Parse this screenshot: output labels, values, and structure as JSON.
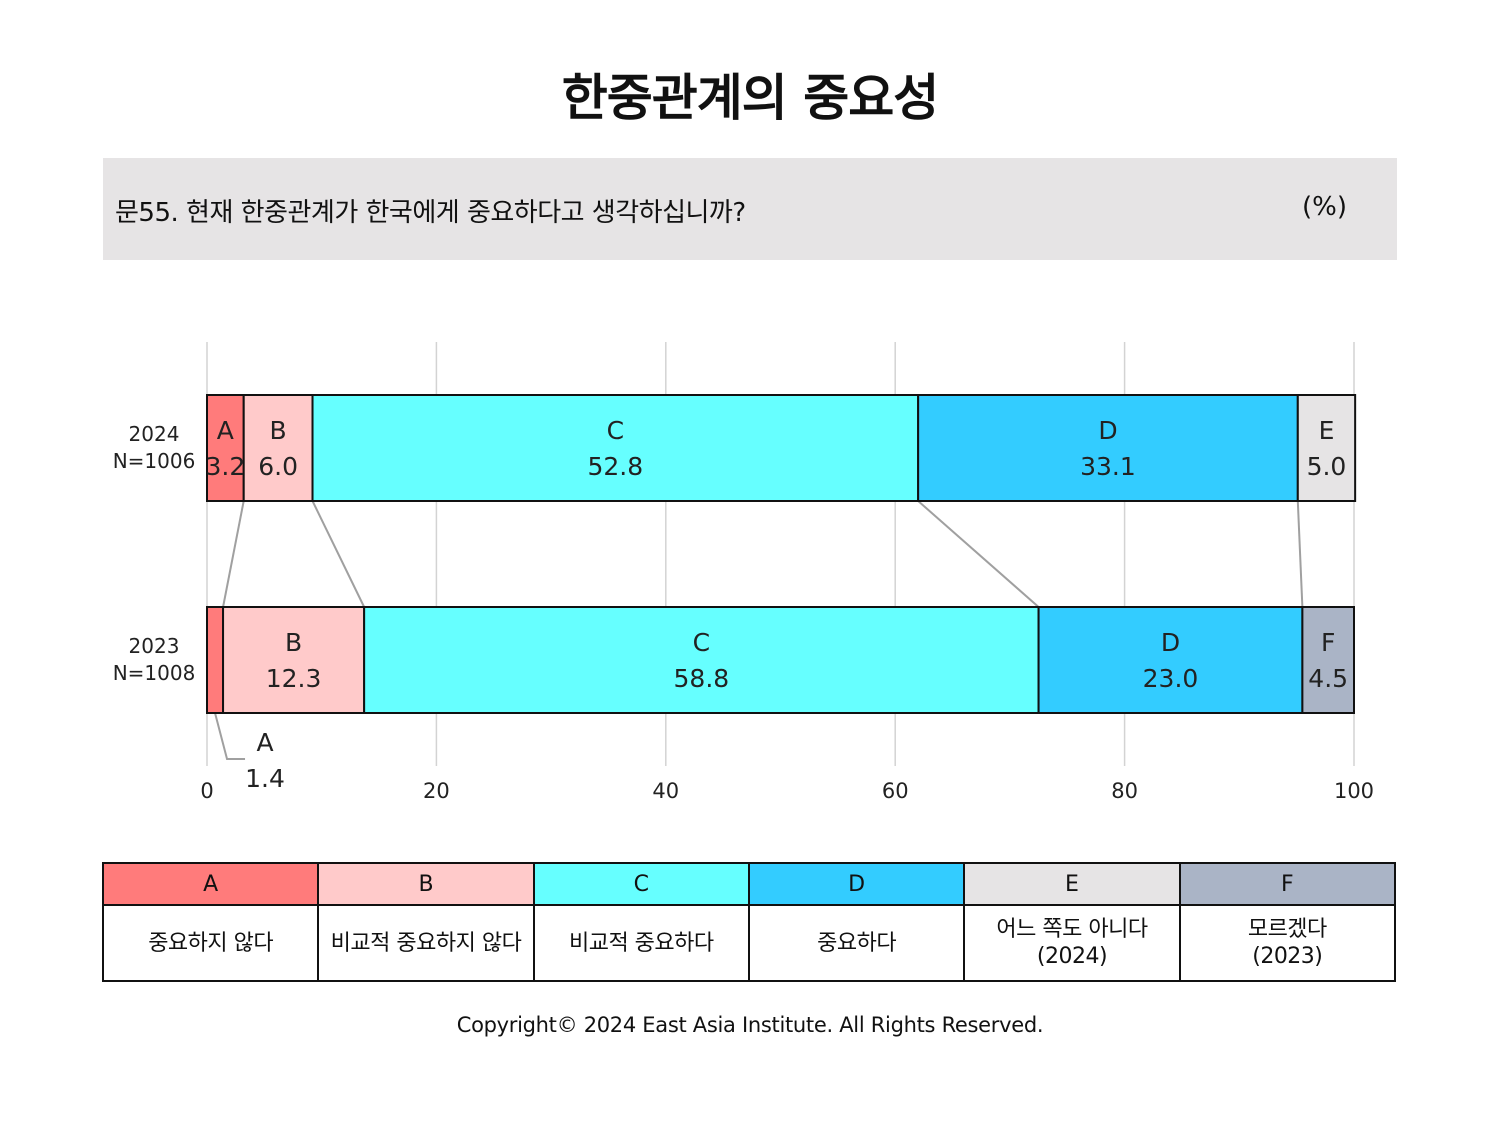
{
  "title": "한중관계의 중요성",
  "question": "문55. 현재 한중관계가 한국에게 중요하다고 생각하십니까?",
  "unit": "(%)",
  "footer": "Copyright© 2024 East Asia Institute. All Rights Reserved.",
  "categories": [
    {
      "code": "A",
      "label": "중요하지 않다",
      "color": "#ff7b7b"
    },
    {
      "code": "B",
      "label": "비교적 중요하지 않다",
      "color": "#ffcaca"
    },
    {
      "code": "C",
      "label": "비교적 중요하다",
      "color": "#66ffff"
    },
    {
      "code": "D",
      "label": "중요하다",
      "color": "#33ccff"
    },
    {
      "code": "E",
      "label": "어느 쪽도 아니다\n(2024)",
      "color": "#e6e4e5"
    },
    {
      "code": "F",
      "label": "모르겠다\n(2023)",
      "color": "#aab4c6"
    }
  ],
  "chart_data": {
    "type": "bar",
    "orientation": "horizontal",
    "stacked": true,
    "xlim": [
      0,
      100
    ],
    "xticks": [
      0,
      20,
      40,
      60,
      80,
      100
    ],
    "grid": true,
    "rows": [
      {
        "year": "2024",
        "n": "N=1006",
        "segments": [
          {
            "code": "A",
            "value": 3.2
          },
          {
            "code": "B",
            "value": 6.0
          },
          {
            "code": "C",
            "value": 52.8
          },
          {
            "code": "D",
            "value": 33.1
          },
          {
            "code": "E",
            "value": 5.0
          }
        ]
      },
      {
        "year": "2023",
        "n": "N=1008",
        "segments": [
          {
            "code": "A",
            "value": 1.4
          },
          {
            "code": "B",
            "value": 12.3
          },
          {
            "code": "C",
            "value": 58.8
          },
          {
            "code": "D",
            "value": 23.0
          },
          {
            "code": "F",
            "value": 4.5
          }
        ]
      }
    ],
    "connectors": true
  }
}
